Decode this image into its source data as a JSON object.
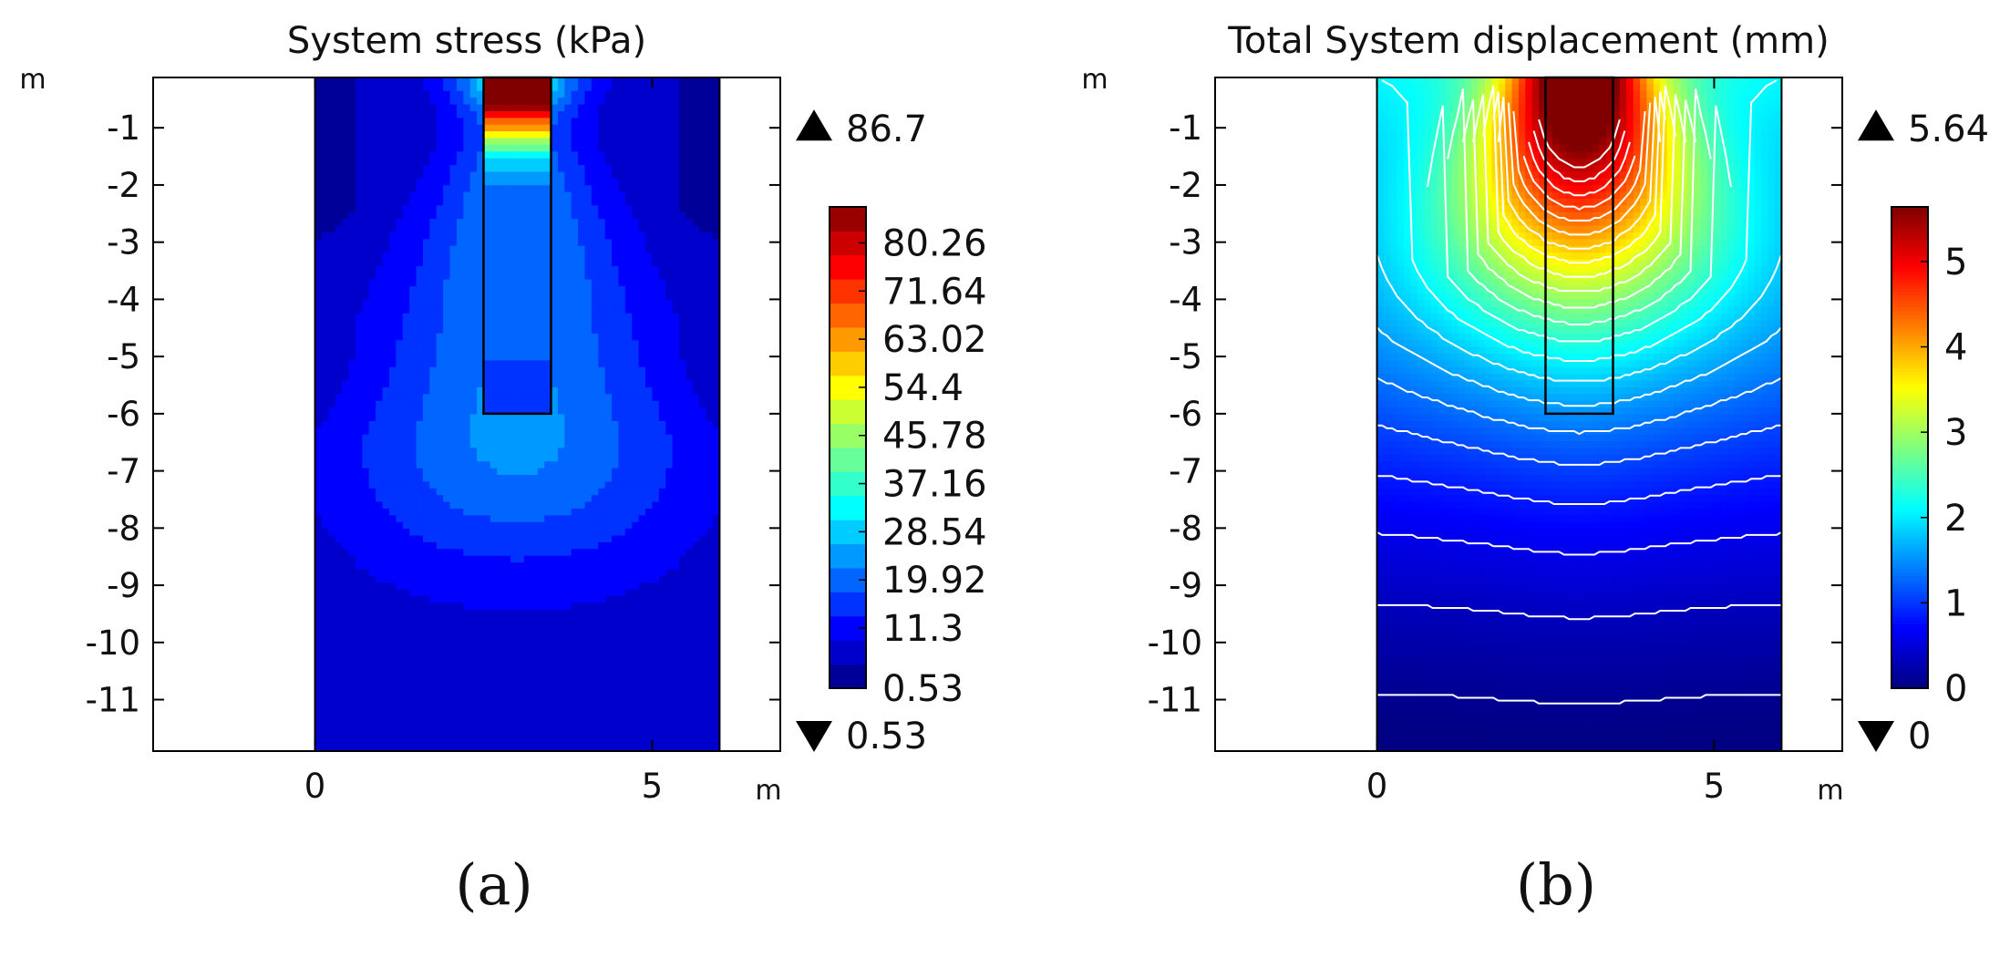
{
  "chart_data": [
    {
      "type": "heatmap",
      "panel_label": "(a)",
      "title": "System stress (kPa)",
      "xlabel": "m",
      "ylabel": "m",
      "xlim": [
        -2.4,
        6.9
      ],
      "ylim": [
        -11.9,
        -0.12
      ],
      "x_ticks": [
        0,
        5
      ],
      "x_tick_labels": [
        "0",
        "5"
      ],
      "y_ticks": [
        -1,
        -2,
        -3,
        -4,
        -5,
        -6,
        -7,
        -8,
        -9,
        -10,
        -11
      ],
      "y_tick_labels": [
        "-1",
        "-2",
        "-3",
        "-4",
        "-5",
        "-6",
        "-7",
        "-8",
        "-9",
        "-10",
        "-11"
      ],
      "domain_x": [
        0,
        6
      ],
      "pile": {
        "x": [
          2.5,
          3.5
        ],
        "depth": -6
      },
      "max_label": "86.7",
      "min_label": "0.53",
      "colorbar": {
        "range": [
          0.53,
          86.7
        ],
        "tick_values": [
          80.26,
          71.64,
          63.02,
          54.4,
          45.78,
          37.16,
          28.54,
          19.92,
          11.3,
          0.53
        ],
        "tick_labels": [
          "80.26",
          "71.64",
          "63.02",
          "54.4",
          "45.78",
          "37.16",
          "28.54",
          "19.92",
          "11.3",
          "0.53"
        ],
        "levels": 20
      },
      "field": "stress",
      "background_color": "#1a3ef0"
    },
    {
      "type": "heatmap",
      "panel_label": "(b)",
      "title": "Total System displacement (mm)",
      "xlabel": "m",
      "ylabel": "m",
      "xlim": [
        -2.4,
        6.9
      ],
      "ylim": [
        -11.9,
        -0.12
      ],
      "x_ticks": [
        0,
        5
      ],
      "x_tick_labels": [
        "0",
        "5"
      ],
      "y_ticks": [
        -1,
        -2,
        -3,
        -4,
        -5,
        -6,
        -7,
        -8,
        -9,
        -10,
        -11
      ],
      "y_tick_labels": [
        "-1",
        "-2",
        "-3",
        "-4",
        "-5",
        "-6",
        "-7",
        "-8",
        "-9",
        "-10",
        "-11"
      ],
      "domain_x": [
        0,
        6
      ],
      "pile": {
        "x": [
          2.5,
          3.5
        ],
        "depth": -6
      },
      "max_label": "5.64",
      "min_label": "0",
      "colorbar": {
        "range": [
          0,
          5.64
        ],
        "tick_values": [
          5,
          4,
          3,
          2,
          1,
          0
        ],
        "tick_labels": [
          "5",
          "4",
          "3",
          "2",
          "1",
          "0"
        ],
        "levels": 0
      },
      "field": "displacement",
      "contour_levels": [
        0.1,
        0.35,
        0.6,
        0.85,
        1.1,
        1.35,
        1.6,
        1.85,
        2.1,
        2.35,
        2.6,
        2.85,
        3.1,
        3.35,
        3.6,
        3.85,
        4.1,
        4.35,
        4.6,
        4.85,
        5.1,
        5.35
      ],
      "contour_color": "#ffffff"
    }
  ]
}
